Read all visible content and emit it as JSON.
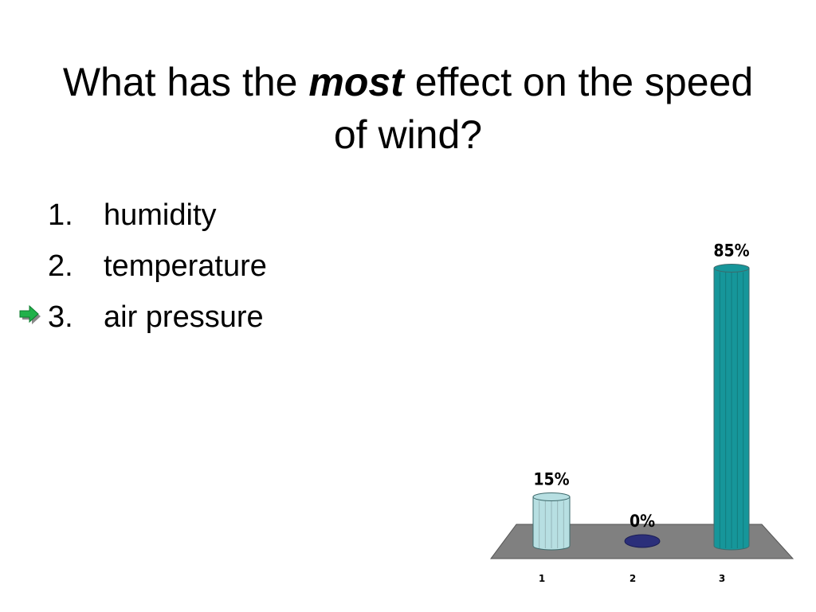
{
  "title": {
    "pre": "What has the",
    "emph": "most",
    "post": "effect on the speed of wind?"
  },
  "answers": [
    {
      "number": "1.",
      "label": "humidity",
      "correct": false
    },
    {
      "number": "2.",
      "label": "temperature",
      "correct": false
    },
    {
      "number": "3.",
      "label": "air pressure",
      "correct": true
    }
  ],
  "icons": {
    "correct_marker": "green-arrow-icon"
  },
  "chart_data": {
    "type": "bar",
    "categories": [
      "1",
      "2",
      "3"
    ],
    "values": [
      15,
      0,
      85
    ],
    "data_labels": [
      "15%",
      "0%",
      "85%"
    ],
    "ylim": [
      0,
      100
    ],
    "colors": [
      "#b7dfe2",
      "#2b2f7a",
      "#16969a"
    ],
    "floor_color": "#808080",
    "grid": false,
    "legend": "none"
  }
}
